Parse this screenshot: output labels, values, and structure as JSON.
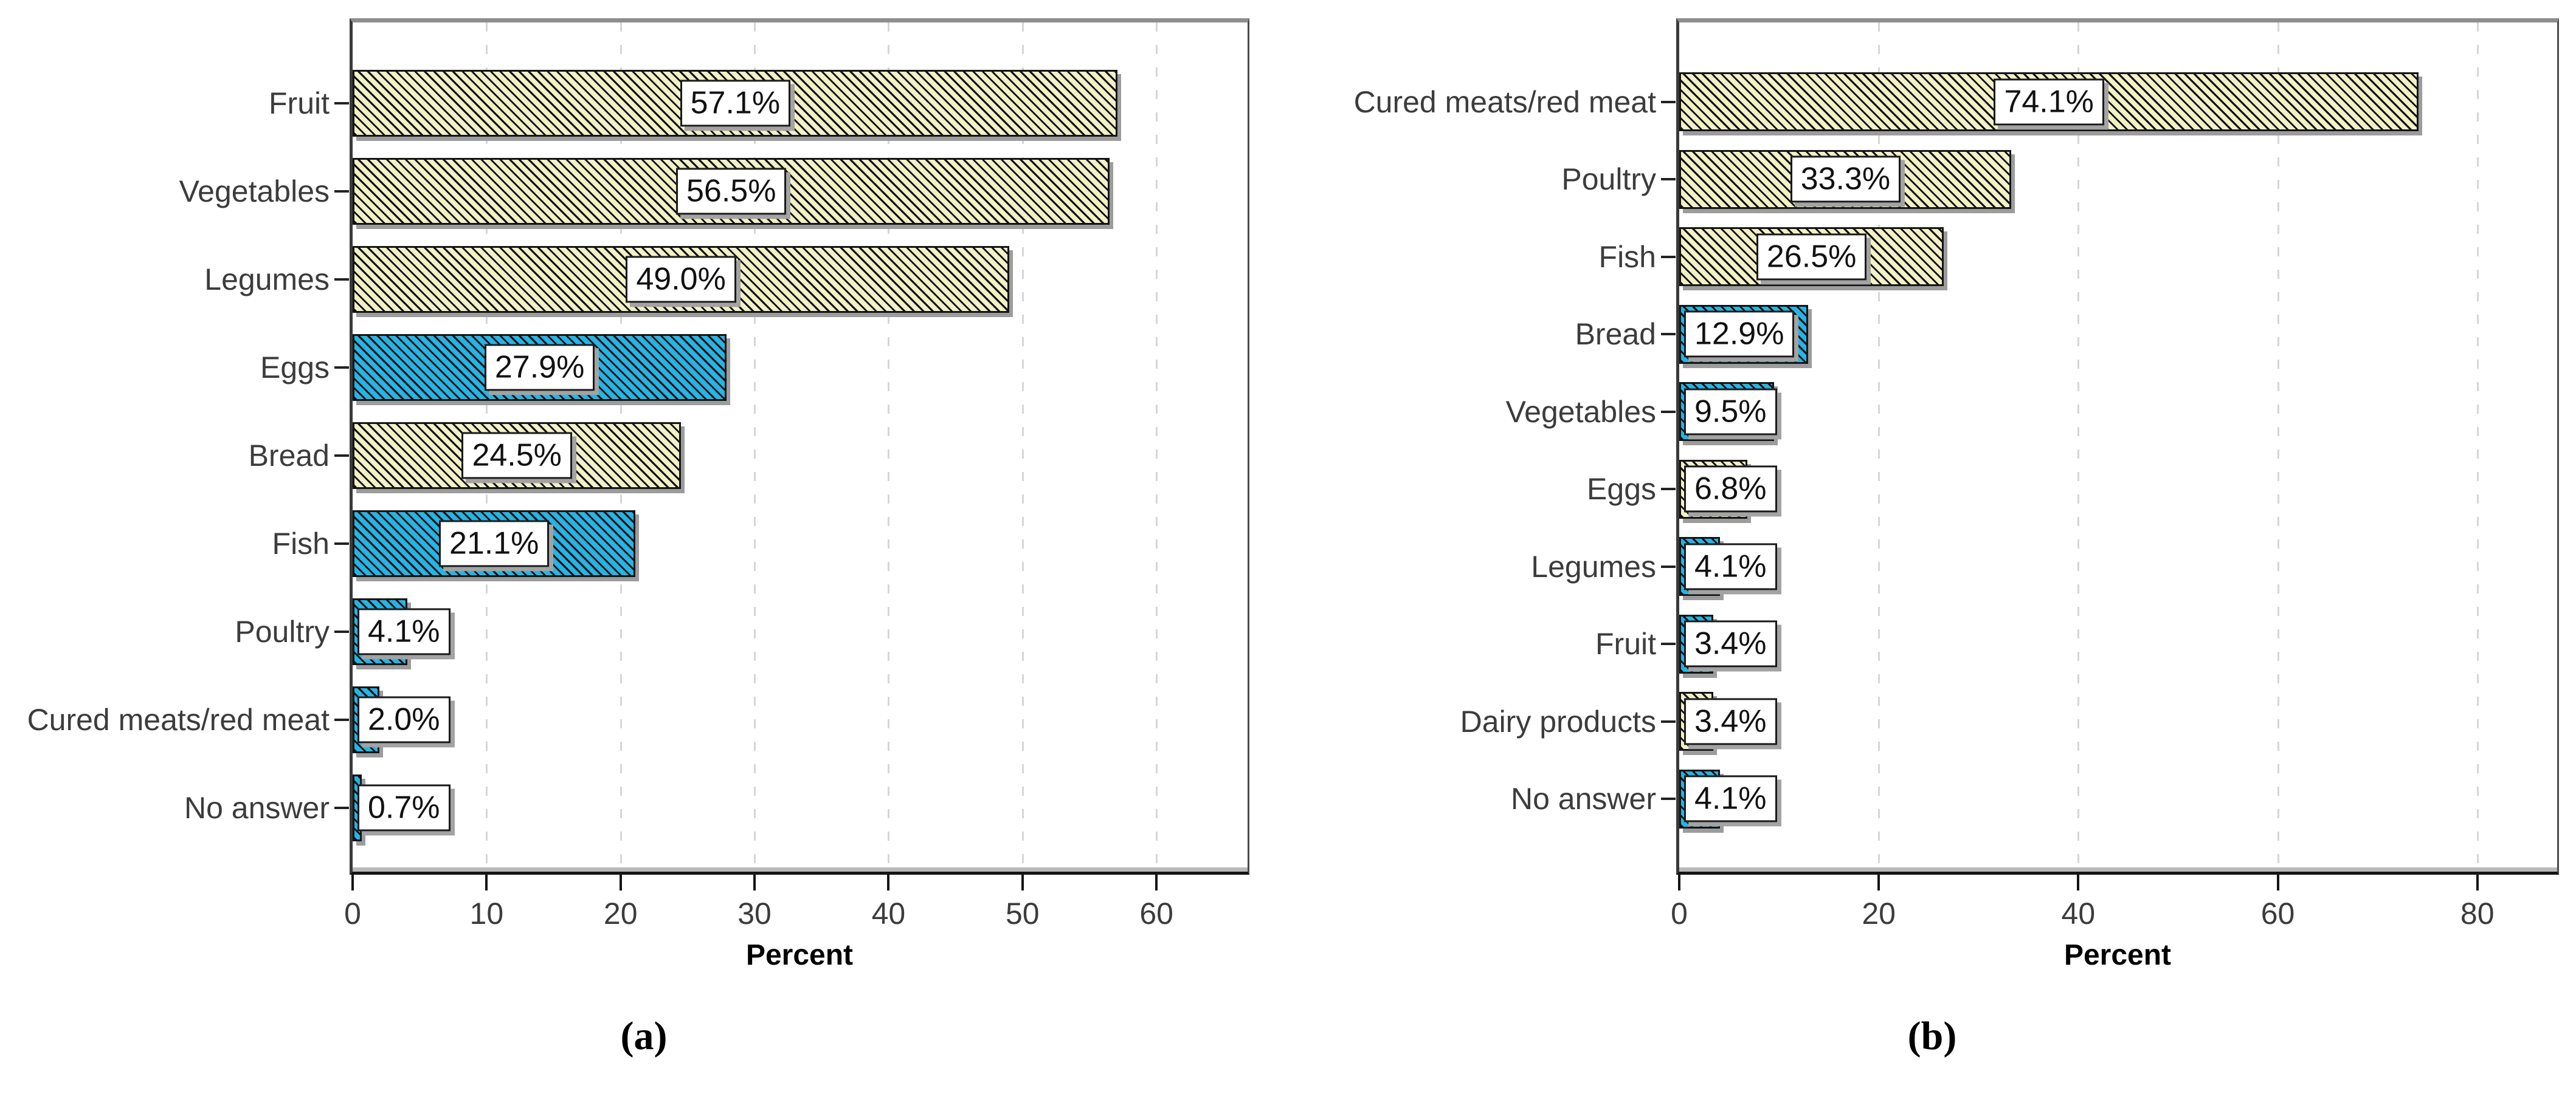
{
  "style": {
    "khaki": "#F2F1C5",
    "blue": "#26B4E4",
    "hatch": "#101010",
    "grid": "#d6d6d6",
    "label_box_bg": "#ffffff",
    "label_box_border": "#1a1a1a",
    "shadow": "#9c9c9c",
    "axis_text": "#3c3c3c",
    "value_text": "#111111"
  },
  "chart_data": [
    {
      "type": "bar",
      "orientation": "horizontal",
      "caption": "(a)",
      "xlabel": "Percent",
      "x_ticks": [
        0,
        10,
        20,
        30,
        40,
        50,
        60
      ],
      "xlim": [
        0,
        66.8
      ],
      "grid": "vertical-dashed",
      "categories": [
        "Fruit",
        "Vegetables",
        "Legumes",
        "Eggs",
        "Bread",
        "Fish",
        "Poultry",
        "Cured meats/red meat",
        "No answer"
      ],
      "values": [
        57.1,
        56.5,
        49.0,
        27.9,
        24.5,
        21.1,
        4.1,
        2.0,
        0.7
      ],
      "value_labels": [
        "57.1%",
        "56.5%",
        "49.0%",
        "27.9%",
        "24.5%",
        "21.1%",
        "4.1%",
        "2.0%",
        "0.7%"
      ],
      "bar_styles": [
        "khaki",
        "khaki",
        "khaki",
        "blue",
        "khaki",
        "blue",
        "blue",
        "blue",
        "blue"
      ]
    },
    {
      "type": "bar",
      "orientation": "horizontal",
      "caption": "(b)",
      "xlabel": "Percent",
      "x_ticks": [
        0,
        20,
        40,
        60,
        80
      ],
      "xlim": [
        0,
        88
      ],
      "grid": "vertical-dashed",
      "categories": [
        "Cured meats/red meat",
        "Poultry",
        "Fish",
        "Bread",
        "Vegetables",
        "Eggs",
        "Legumes",
        "Fruit",
        "Dairy products",
        "No answer"
      ],
      "values": [
        74.1,
        33.3,
        26.5,
        12.9,
        9.5,
        6.8,
        4.1,
        3.4,
        3.4,
        4.1
      ],
      "value_labels": [
        "74.1%",
        "33.3%",
        "26.5%",
        "12.9%",
        "9.5%",
        "6.8%",
        "4.1%",
        "3.4%",
        "3.4%",
        "4.1%"
      ],
      "bar_styles": [
        "khaki",
        "khaki",
        "khaki",
        "blue",
        "blue",
        "khaki",
        "blue",
        "blue",
        "khaki",
        "blue"
      ]
    }
  ]
}
